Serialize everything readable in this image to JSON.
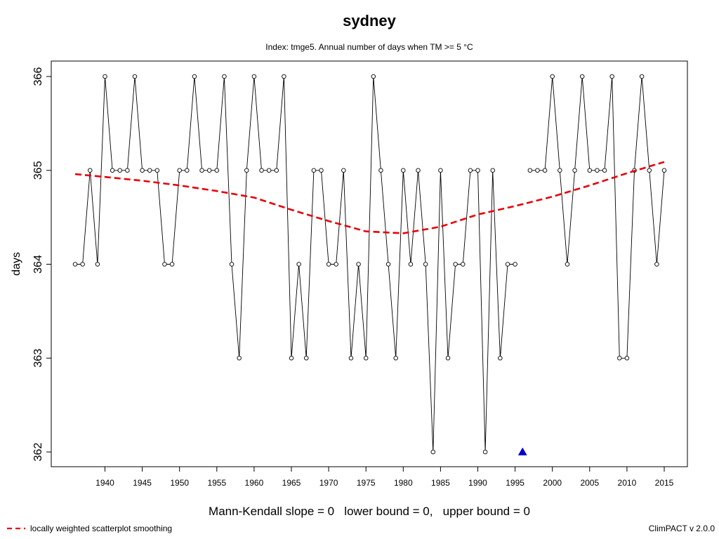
{
  "chart_data": {
    "type": "line",
    "title": "sydney",
    "subtitle": "Index: tmge5. Annual number of days when TM >= 5 °C",
    "xlabel": "",
    "ylabel": "days",
    "xlim": [
      1935,
      2016
    ],
    "ylim": [
      361.9,
      366.15
    ],
    "x_ticks": [
      1940,
      1945,
      1950,
      1955,
      1960,
      1965,
      1970,
      1975,
      1980,
      1985,
      1990,
      1995,
      2000,
      2005,
      2010,
      2015
    ],
    "y_ticks": [
      362,
      363,
      364,
      365,
      366
    ],
    "grid": false,
    "series": [
      {
        "style": "points-and-lines",
        "color": "#000000",
        "x": [
          1936,
          1937,
          1938,
          1939,
          1940,
          1941,
          1942,
          1943,
          1944,
          1945,
          1946,
          1947,
          1948,
          1949,
          1950,
          1951,
          1952,
          1953,
          1954,
          1955,
          1956,
          1957,
          1958,
          1959,
          1960,
          1961,
          1962,
          1963,
          1964,
          1965,
          1966,
          1967,
          1968,
          1969,
          1970,
          1971,
          1972,
          1973,
          1974,
          1975,
          1976,
          1977,
          1978,
          1979,
          1980,
          1981,
          1982,
          1983,
          1984,
          1985,
          1986,
          1987,
          1988,
          1989,
          1990,
          1991,
          1992,
          1993,
          1994,
          1995,
          1996,
          1997,
          1998,
          1999,
          2000,
          2001,
          2002,
          2003,
          2004,
          2005,
          2006,
          2007,
          2008,
          2009,
          2010,
          2011,
          2012,
          2013,
          2014,
          2015
        ],
        "values": [
          364,
          364,
          365,
          364,
          366,
          365,
          365,
          365,
          366,
          365,
          365,
          365,
          364,
          364,
          365,
          365,
          366,
          365,
          365,
          365,
          366,
          364,
          363,
          365,
          366,
          365,
          365,
          365,
          366,
          363,
          364,
          363,
          365,
          365,
          364,
          364,
          365,
          363,
          364,
          363,
          366,
          365,
          364,
          363,
          365,
          364,
          365,
          364,
          362,
          365,
          363,
          364,
          364,
          365,
          365,
          362,
          365,
          363,
          364,
          364,
          null,
          365,
          365,
          365,
          366,
          365,
          364,
          365,
          366,
          365,
          365,
          365,
          366,
          363,
          363,
          365,
          366,
          365,
          364,
          365
        ]
      },
      {
        "name": "locally weighted scatterplot smoothing",
        "style": "dashed",
        "color": "#e8000b",
        "x": [
          1936,
          1940,
          1945,
          1950,
          1955,
          1960,
          1965,
          1970,
          1975,
          1980,
          1985,
          1990,
          1995,
          2000,
          2005,
          2010,
          2015
        ],
        "values": [
          364.96,
          364.93,
          364.89,
          364.84,
          364.78,
          364.71,
          364.58,
          364.46,
          364.35,
          364.33,
          364.4,
          364.53,
          364.62,
          364.72,
          364.84,
          364.97,
          365.09
        ]
      }
    ],
    "markers": [
      {
        "name": "missing-value-marker",
        "shape": "triangle",
        "color": "#0000cc",
        "x": 1996,
        "y": 362
      }
    ],
    "legend": {
      "position": "bottom-left",
      "entries": [
        "locally weighted scatterplot smoothing"
      ]
    }
  },
  "footer": {
    "stats": "Mann-Kendall slope = 0   lower bound = 0,   upper bound = 0",
    "version": "ClimPACT v 2.0.0"
  }
}
